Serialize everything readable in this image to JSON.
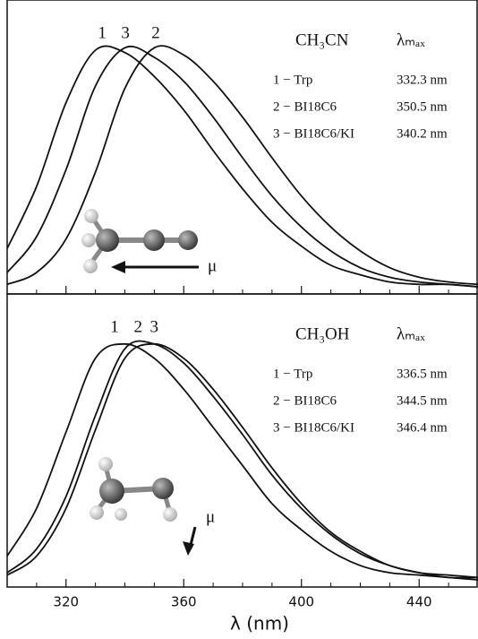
{
  "chart_data": [
    {
      "type": "line",
      "solvent": "CH₃CN",
      "lambda_header": "λₘₐₓ",
      "xlim": [
        300,
        460
      ],
      "ylim": [
        -0.03,
        1.2
      ],
      "xticks": [
        320,
        360,
        400,
        440
      ],
      "xminorticks": [
        310,
        330,
        340,
        350,
        370,
        380,
        390,
        410,
        420,
        430,
        450
      ],
      "x": [
        300,
        310,
        320,
        330,
        340,
        350,
        360,
        370,
        380,
        390,
        400,
        410,
        420,
        430,
        440,
        450,
        460
      ],
      "series": [
        {
          "name": "1 − Trp",
          "peak_label": "1",
          "lambda_max": 332.3,
          "lambda_max_label": "332.3 nm",
          "color": "#111111",
          "values": [
            0.16,
            0.42,
            0.77,
            0.99,
            0.98,
            0.88,
            0.74,
            0.57,
            0.41,
            0.27,
            0.17,
            0.09,
            0.05,
            0.02,
            0.01,
            0.01,
            0.0
          ]
        },
        {
          "name": "2 − BI18C6",
          "peak_label": "2",
          "lambda_max": 350.5,
          "lambda_max_label": "350.5 nm",
          "color": "#111111",
          "values": [
            0.01,
            0.06,
            0.2,
            0.48,
            0.83,
            1.0,
            0.97,
            0.86,
            0.71,
            0.54,
            0.38,
            0.25,
            0.15,
            0.08,
            0.04,
            0.02,
            0.01
          ]
        },
        {
          "name": "3 − BI18C6/KI",
          "peak_label": "3",
          "lambda_max": 340.2,
          "lambda_max_label": "340.2 nm",
          "color": "#111111",
          "values": [
            0.06,
            0.21,
            0.49,
            0.84,
            1.0,
            0.96,
            0.86,
            0.71,
            0.54,
            0.38,
            0.25,
            0.15,
            0.08,
            0.04,
            0.02,
            0.01,
            0.0
          ]
        }
      ],
      "dipole_label": "μ"
    },
    {
      "type": "line",
      "solvent": "CH₃OH",
      "lambda_header": "λₘₐₓ",
      "xlim": [
        300,
        460
      ],
      "ylim": [
        -0.03,
        1.2
      ],
      "xticks": [
        320,
        360,
        400,
        440
      ],
      "xminorticks": [
        310,
        330,
        340,
        350,
        370,
        380,
        390,
        410,
        420,
        430,
        450
      ],
      "x": [
        300,
        310,
        320,
        330,
        340,
        350,
        360,
        370,
        380,
        390,
        400,
        410,
        420,
        430,
        440,
        450,
        460
      ],
      "series": [
        {
          "name": "1 − Trp",
          "peak_label": "1",
          "lambda_max": 336.5,
          "lambda_max_label": "336.5 nm",
          "color": "#111111",
          "values": [
            0.1,
            0.3,
            0.62,
            0.93,
            0.99,
            0.93,
            0.8,
            0.64,
            0.48,
            0.32,
            0.21,
            0.12,
            0.06,
            0.03,
            0.02,
            0.01,
            0.0
          ]
        },
        {
          "name": "2 − BI18C6",
          "peak_label": "2",
          "lambda_max": 344.5,
          "lambda_max_label": "344.5 nm",
          "color": "#111111",
          "values": [
            0.03,
            0.13,
            0.35,
            0.69,
            0.97,
            0.99,
            0.91,
            0.77,
            0.61,
            0.44,
            0.3,
            0.19,
            0.11,
            0.06,
            0.03,
            0.01,
            0.01
          ]
        },
        {
          "name": "3 − BI18C6/KI",
          "peak_label": "3",
          "lambda_max": 346.4,
          "lambda_max_label": "346.4 nm",
          "color": "#111111",
          "values": [
            0.02,
            0.1,
            0.3,
            0.63,
            0.93,
            0.99,
            0.93,
            0.8,
            0.64,
            0.47,
            0.32,
            0.2,
            0.12,
            0.06,
            0.03,
            0.02,
            0.01
          ]
        }
      ],
      "dipole_label": "μ"
    }
  ],
  "x_axis_label": "λ (nm)"
}
